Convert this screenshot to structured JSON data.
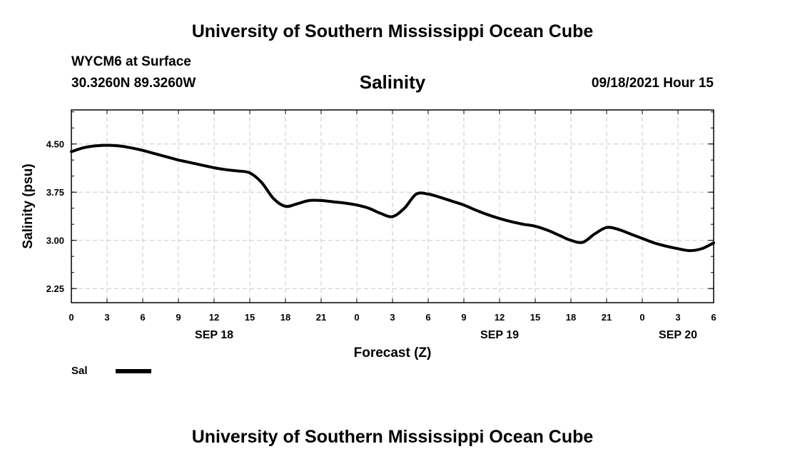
{
  "header": {
    "title_top": "University of Southern Mississippi Ocean Cube",
    "station": "WYCM6 at Surface",
    "coords": "30.3260N  89.3260W",
    "chart_title": "Salinity",
    "datetime": "09/18/2021 Hour 15"
  },
  "footer": {
    "title_bottom": "University of Southern Mississippi Ocean Cube"
  },
  "colors": {
    "line": "#000000",
    "grid": "#c8c8c8"
  },
  "chart_data": {
    "type": "line",
    "title": "Salinity",
    "xlabel": "Forecast (Z)",
    "ylabel": "Salinity (psu)",
    "ylim": [
      2.03,
      5.03
    ],
    "xlim": [
      0,
      54
    ],
    "grid": true,
    "x_ticks": [
      0,
      3,
      6,
      9,
      12,
      15,
      18,
      21,
      24,
      27,
      30,
      33,
      36,
      39,
      42,
      45,
      48,
      51,
      54
    ],
    "x_tick_labels": [
      "0",
      "3",
      "6",
      "9",
      "12",
      "15",
      "18",
      "21",
      "0",
      "3",
      "6",
      "9",
      "12",
      "15",
      "18",
      "21",
      "0",
      "3",
      "6"
    ],
    "y_ticks": [
      2.25,
      3.0,
      3.75,
      4.5
    ],
    "y_tick_labels": [
      "2.25",
      "3.00",
      "3.75",
      "4.50"
    ],
    "date_labels": [
      {
        "x": 12,
        "label": "SEP 18"
      },
      {
        "x": 36,
        "label": "SEP 19"
      },
      {
        "x": 51,
        "label": "SEP 20"
      }
    ],
    "legend": {
      "position": "bottom-left",
      "label": "Sal"
    },
    "series": [
      {
        "name": "Sal",
        "x": [
          0,
          1,
          2,
          3,
          4,
          5,
          6,
          7,
          8,
          9,
          10,
          11,
          12,
          13,
          14,
          15,
          16,
          17,
          18,
          19,
          20,
          21,
          22,
          23,
          24,
          25,
          26,
          27,
          28,
          29,
          30,
          31,
          32,
          33,
          34,
          35,
          36,
          37,
          38,
          39,
          40,
          41,
          42,
          43,
          44,
          45,
          46,
          47,
          48,
          49,
          50,
          51,
          52,
          53,
          54
        ],
        "values": [
          4.38,
          4.44,
          4.47,
          4.48,
          4.47,
          4.44,
          4.4,
          4.35,
          4.3,
          4.25,
          4.21,
          4.17,
          4.13,
          4.1,
          4.08,
          4.05,
          3.9,
          3.65,
          3.53,
          3.57,
          3.62,
          3.62,
          3.6,
          3.58,
          3.55,
          3.5,
          3.42,
          3.37,
          3.5,
          3.72,
          3.72,
          3.67,
          3.61,
          3.55,
          3.47,
          3.4,
          3.34,
          3.29,
          3.25,
          3.22,
          3.16,
          3.08,
          3.0,
          2.97,
          3.1,
          3.2,
          3.17,
          3.1,
          3.03,
          2.96,
          2.91,
          2.87,
          2.84,
          2.87,
          2.96
        ]
      }
    ]
  }
}
